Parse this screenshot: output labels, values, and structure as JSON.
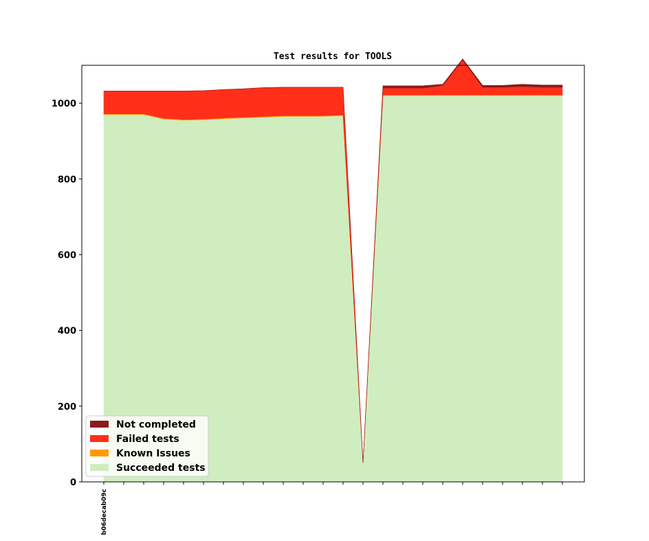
{
  "chart_data": {
    "type": "area",
    "stacked": true,
    "title": "Test results for TOOLS",
    "xlabel": "",
    "ylabel": "",
    "ylim": [
      0,
      1100
    ],
    "yticks": [
      0,
      200,
      400,
      600,
      800,
      1000
    ],
    "x_count": 24,
    "x_tick_labels": [
      {
        "index": 0,
        "label": "b06decab09c"
      }
    ],
    "legend_position": "lower-left",
    "grid": false,
    "series": [
      {
        "name": "Succeeded tests",
        "color": "#cfedbe",
        "values": [
          970,
          970,
          970,
          958,
          955,
          956,
          959,
          961,
          963,
          965,
          965,
          965,
          967,
          50,
          1020,
          1020,
          1020,
          1020,
          1020,
          1020,
          1020,
          1020,
          1020,
          1020
        ]
      },
      {
        "name": "Known Issues",
        "color": "#ff9900",
        "values": [
          2,
          2,
          2,
          2,
          2,
          2,
          2,
          2,
          2,
          2,
          2,
          2,
          2,
          0,
          2,
          2,
          2,
          2,
          2,
          2,
          2,
          2,
          2,
          2
        ]
      },
      {
        "name": "Failed tests",
        "color": "#ff2f1a",
        "values": [
          60,
          60,
          60,
          72,
          75,
          75,
          75,
          75,
          76,
          75,
          75,
          75,
          73,
          0,
          18,
          18,
          18,
          25,
          92,
          20,
          20,
          22,
          20,
          20
        ]
      },
      {
        "name": "Not completed",
        "color": "#8b1a1a",
        "values": [
          0,
          0,
          0,
          0,
          0,
          0,
          0,
          0,
          0,
          0,
          0,
          0,
          0,
          0,
          6,
          6,
          6,
          3,
          3,
          5,
          5,
          6,
          6,
          6
        ]
      }
    ],
    "legend_entries": [
      "Not completed",
      "Failed tests",
      "Known Issues",
      "Succeeded tests"
    ]
  }
}
